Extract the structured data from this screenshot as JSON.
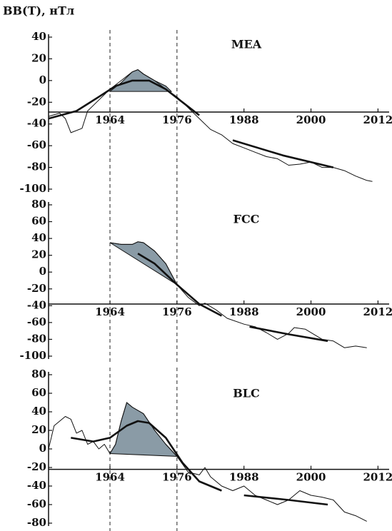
{
  "chart_data": [
    {
      "type": "line",
      "title": "MEA",
      "ylabel": "BB(T), нТл",
      "xlim": [
        1953,
        2014
      ],
      "xticks": [
        1964,
        1976,
        1988,
        2000,
        2012
      ],
      "xaxis_at": -29,
      "ylim": [
        -100,
        40
      ],
      "yticks": [
        40,
        20,
        0,
        -20,
        -40,
        -60,
        -80,
        -100
      ],
      "vlines": [
        1964,
        1976
      ],
      "series": [
        {
          "kind": "area",
          "color": "#8a9ba6",
          "x": [
            1964,
            1966,
            1968,
            1969,
            1970,
            1972,
            1974,
            1975
          ],
          "values": [
            -10,
            -2,
            8,
            10,
            6,
            0,
            -5,
            -10
          ]
        },
        {
          "kind": "thin",
          "color": "#111111",
          "x": [
            1953,
            1955,
            1956,
            1957,
            1959,
            1960,
            1962,
            1964,
            1966,
            1968,
            1969,
            1970,
            1972,
            1974,
            1976,
            1978,
            1980,
            1982,
            1984,
            1986,
            1988,
            1990,
            1992,
            1994,
            1996,
            1998,
            2000,
            2002,
            2004,
            2006,
            2008,
            2010,
            2011
          ],
          "values": [
            -33,
            -30,
            -35,
            -48,
            -44,
            -28,
            -18,
            -8,
            0,
            8,
            10,
            6,
            0,
            -8,
            -15,
            -25,
            -35,
            -45,
            -50,
            -58,
            -62,
            -66,
            -70,
            -72,
            -78,
            -77,
            -75,
            -80,
            -80,
            -83,
            -88,
            -92,
            -93
          ]
        },
        {
          "kind": "thick",
          "color": "#111111",
          "x": [
            1953,
            1958,
            1962,
            1965,
            1968,
            1971,
            1974,
            1977,
            1980
          ],
          "values": [
            -35,
            -28,
            -15,
            -5,
            0,
            0,
            -8,
            -20,
            -32
          ]
        },
        {
          "kind": "thick",
          "color": "#111111",
          "x": [
            1986,
            1995,
            2004
          ],
          "values": [
            -55,
            -69,
            -80
          ]
        }
      ]
    },
    {
      "type": "line",
      "title": "FCC",
      "xlim": [
        1953,
        2014
      ],
      "xticks": [
        1964,
        1976,
        1988,
        2000,
        2012
      ],
      "xaxis_at": -38,
      "ylim": [
        -100,
        80
      ],
      "yticks": [
        80,
        60,
        40,
        20,
        0,
        -20,
        -40,
        -60,
        -80,
        -100
      ],
      "vlines": [
        1964,
        1976
      ],
      "series": [
        {
          "kind": "area",
          "color": "#8a9ba6",
          "x": [
            1964,
            1966,
            1968,
            1969,
            1970,
            1972,
            1974,
            1976
          ],
          "values": [
            35,
            33,
            33,
            36,
            35,
            25,
            10,
            -15
          ]
        },
        {
          "kind": "thin",
          "color": "#111111",
          "x": [
            1964,
            1966,
            1968,
            1969,
            1970,
            1972,
            1974,
            1976,
            1978,
            1980,
            1981,
            1983,
            1985,
            1988,
            1990,
            1992,
            1994,
            1996,
            1997,
            1999,
            2002,
            2004,
            2006,
            2008,
            2010
          ],
          "values": [
            35,
            33,
            33,
            36,
            35,
            25,
            10,
            -15,
            -30,
            -40,
            -37,
            -45,
            -55,
            -62,
            -65,
            -72,
            -80,
            -73,
            -66,
            -68,
            -80,
            -82,
            -90,
            -88,
            -90
          ]
        },
        {
          "kind": "thick",
          "color": "#111111",
          "x": [
            1969,
            1972,
            1976,
            1980,
            1984
          ],
          "values": [
            22,
            10,
            -15,
            -38,
            -52
          ]
        },
        {
          "kind": "thick",
          "color": "#111111",
          "x": [
            1989,
            1996,
            2003
          ],
          "values": [
            -65,
            -74,
            -82
          ]
        }
      ]
    },
    {
      "type": "line",
      "title": "BLC",
      "xlim": [
        1953,
        2014
      ],
      "xticks": [
        1964,
        1976,
        1988,
        2000,
        2012
      ],
      "xaxis_at": -22,
      "ylim": [
        -80,
        80
      ],
      "yticks": [
        80,
        60,
        40,
        20,
        0,
        -20,
        -40,
        -60,
        -80
      ],
      "vlines": [
        1964,
        1976
      ],
      "series": [
        {
          "kind": "area",
          "color": "#8a9ba6",
          "x": [
            1964,
            1965,
            1966,
            1967,
            1968,
            1970,
            1972,
            1974,
            1976
          ],
          "values": [
            -5,
            5,
            30,
            50,
            45,
            38,
            20,
            5,
            -8
          ]
        },
        {
          "kind": "thin",
          "color": "#111111",
          "x": [
            1953,
            1954,
            1956,
            1957,
            1958,
            1959,
            1960,
            1961,
            1962,
            1963,
            1964,
            1965,
            1966,
            1967,
            1968,
            1970,
            1972,
            1974,
            1976,
            1978,
            1980,
            1981,
            1982,
            1984,
            1986,
            1988,
            1990,
            1992,
            1994,
            1996,
            1998,
            2000,
            2002,
            2004,
            2006,
            2008,
            2010
          ],
          "values": [
            0,
            25,
            35,
            32,
            17,
            20,
            5,
            8,
            0,
            5,
            -5,
            5,
            30,
            50,
            45,
            38,
            20,
            5,
            -8,
            -25,
            -28,
            -20,
            -30,
            -40,
            -45,
            -40,
            -50,
            -55,
            -60,
            -55,
            -45,
            -50,
            -52,
            -55,
            -68,
            -72,
            -78
          ]
        },
        {
          "kind": "thick",
          "color": "#111111",
          "x": [
            1957,
            1961,
            1964,
            1967,
            1969,
            1971,
            1974,
            1977,
            1980,
            1984
          ],
          "values": [
            12,
            8,
            12,
            25,
            30,
            28,
            12,
            -15,
            -35,
            -45
          ]
        },
        {
          "kind": "thick",
          "color": "#111111",
          "x": [
            1988,
            1996,
            2003
          ],
          "values": [
            -50,
            -55,
            -60
          ]
        }
      ]
    }
  ]
}
